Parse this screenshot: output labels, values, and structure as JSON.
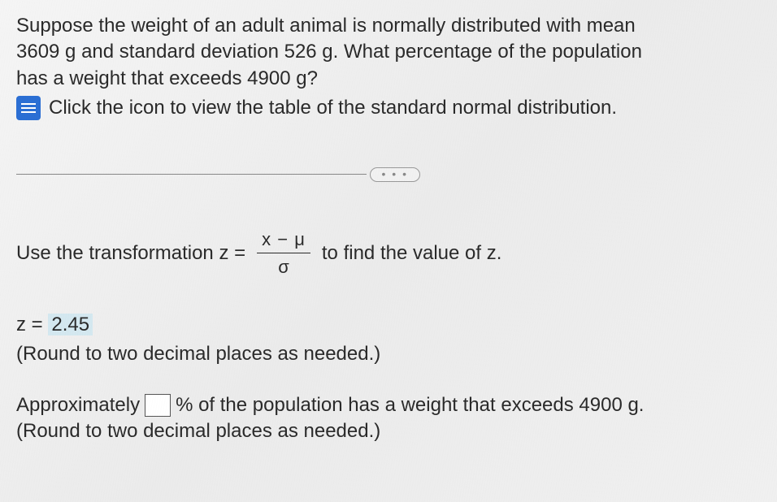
{
  "problem": {
    "line1": "Suppose the weight of an adult animal is normally distributed with mean",
    "line2": "3609 g and standard deviation 526 g. What percentage of the population",
    "line3": "has a weight that exceeds 4900 g?",
    "icon_instruction": "Click the icon to view the table of the standard normal distribution."
  },
  "divider": {
    "dots": "• • •"
  },
  "transformation": {
    "prefix": "Use the transformation z =",
    "numerator": "x − μ",
    "denominator": "σ",
    "suffix": "to find the value of z."
  },
  "z_result": {
    "label": "z =",
    "value": "2.45",
    "round_note": "(Round to two decimal places as needed.)"
  },
  "answer": {
    "prefix": "Approximately",
    "suffix": "% of the population has a weight that exceeds 4900 g.",
    "round_note": "(Round to two decimal places as needed.)"
  },
  "colors": {
    "icon_bg": "#2b6fd4",
    "highlight_bg": "#d4e8f0",
    "text": "#2a2a2a"
  }
}
